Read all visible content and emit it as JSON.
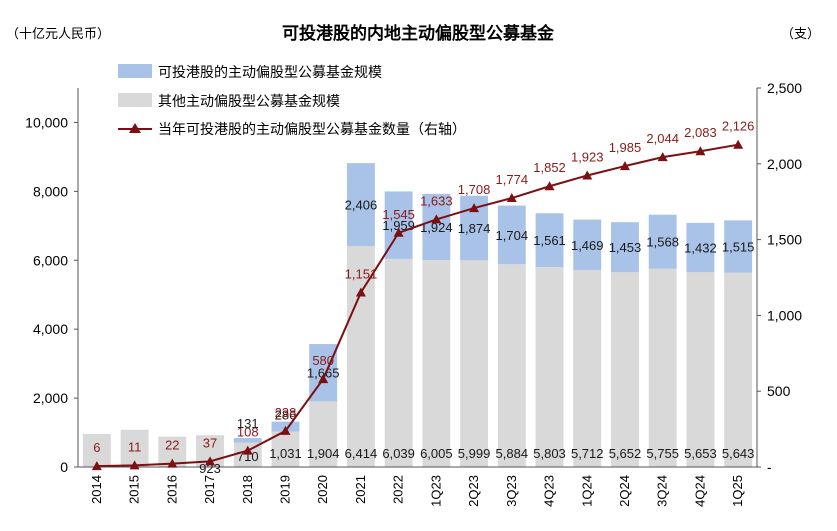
{
  "chart_data": {
    "type": "bar",
    "title": "可投港股的内地主动偏股型公募基金",
    "left_unit": "（十亿元人民币）",
    "right_unit": "（支）",
    "categories": [
      "2014",
      "2015",
      "2016",
      "2017",
      "2018",
      "2019",
      "2020",
      "2021",
      "2022",
      "1Q23",
      "2Q23",
      "3Q23",
      "4Q23",
      "1Q24",
      "2Q24",
      "3Q24",
      "4Q24",
      "1Q25"
    ],
    "legend": [
      "可投港股的主动偏股型公募基金规模",
      "其他主动偏股型公募基金规模",
      "当年可投港股的主动偏股型公募基金数量（右轴）"
    ],
    "series": [
      {
        "name": "其他主动偏股型公募基金规模",
        "color": "#d9d9d9",
        "values": [
          null,
          null,
          null,
          923,
          710,
          1031,
          1904,
          6414,
          6039,
          6005,
          5999,
          5884,
          5803,
          5712,
          5652,
          5755,
          5653,
          5643
        ],
        "labels": [
          "",
          "",
          "",
          "923",
          "710",
          "1,031",
          "1,904",
          "6,414",
          "6,039",
          "6,005",
          "5,999",
          "5,884",
          "5,803",
          "5,712",
          "5,652",
          "5,755",
          "5,653",
          "5,643"
        ]
      },
      {
        "name": "可投港股的主动偏股型公募基金规模",
        "color": "#a9c3e8",
        "values": [
          null,
          null,
          null,
          null,
          131,
          286,
          1665,
          2406,
          1959,
          1924,
          1874,
          1704,
          1561,
          1469,
          1453,
          1568,
          1432,
          1515
        ],
        "labels": [
          "",
          "",
          "",
          "",
          "131",
          "286",
          "1,665",
          "2,406",
          "1,959",
          "1,924",
          "1,874",
          "1,704",
          "1,561",
          "1,469",
          "1,453",
          "1,568",
          "1,432",
          "1,515"
        ]
      },
      {
        "name": "当年可投港股的主动偏股型公募基金数量（右轴）",
        "axis": "right",
        "color": "#7b0f12",
        "values": [
          6,
          11,
          22,
          37,
          108,
          238,
          580,
          1151,
          1545,
          1633,
          1708,
          1774,
          1852,
          1923,
          1985,
          2044,
          2083,
          2126
        ],
        "labels": [
          "6",
          "11",
          "22",
          "37",
          "108",
          "238",
          "580",
          "1,151",
          "1,545",
          "1,633",
          "1,708",
          "1,774",
          "1,852",
          "1,923",
          "1,985",
          "2,044",
          "2,083",
          "2,126"
        ]
      }
    ],
    "unlabeled_totals": {
      "2014": 960,
      "2015": 1080,
      "2016": 880,
      "2017": 1000
    },
    "y_left": {
      "min": 0,
      "max": 11000,
      "ticks": [
        0,
        2000,
        4000,
        6000,
        8000,
        10000
      ],
      "tick_labels": [
        "0",
        "2,000",
        "4,000",
        "6,000",
        "8,000",
        "10,000"
      ]
    },
    "y_right": {
      "min": 0,
      "max": 2500,
      "ticks": [
        0,
        500,
        1000,
        1500,
        2000,
        2500
      ],
      "tick_labels": [
        "-",
        "500",
        "1,000",
        "1,500",
        "2,000",
        "2,500"
      ]
    },
    "grid": false,
    "legend_position": "top-left"
  }
}
